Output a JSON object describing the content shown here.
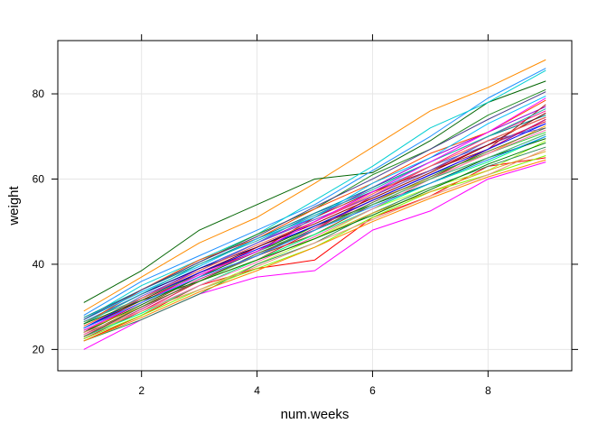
{
  "chart_data": {
    "type": "line",
    "title": "",
    "xlabel": "num.weeks",
    "ylabel": "weight",
    "xlim": [
      0.55,
      9.45
    ],
    "ylim": [
      15.0,
      92.5
    ],
    "x_ticks": [
      2,
      4,
      6,
      8
    ],
    "y_ticks": [
      20,
      40,
      60,
      80
    ],
    "grid": true,
    "legend": "none",
    "x": [
      1,
      2,
      3,
      4,
      5,
      6,
      7,
      8,
      9
    ],
    "series": [
      {
        "color": "#ff8c00",
        "values": [
          29,
          37,
          45,
          51,
          59,
          67.5,
          76,
          81.5,
          88
        ]
      },
      {
        "color": "#006400",
        "values": [
          31,
          38.5,
          48,
          54,
          60,
          61.5,
          69,
          78,
          83
        ]
      },
      {
        "color": "#1e90ff",
        "values": [
          28,
          36,
          42,
          48,
          54,
          62,
          70,
          79,
          86
        ]
      },
      {
        "color": "#00ced1",
        "values": [
          27,
          35,
          41,
          47,
          55,
          63,
          72,
          78,
          85.5
        ]
      },
      {
        "color": "#228b22",
        "values": [
          26,
          34,
          40.5,
          47,
          53,
          61,
          67,
          75,
          81
        ]
      },
      {
        "color": "#ff00ff",
        "values": [
          20,
          27,
          33,
          37,
          38.5,
          48,
          52.5,
          60,
          64
        ]
      },
      {
        "color": "#ff0000",
        "values": [
          22,
          28,
          35,
          39,
          41,
          51,
          56,
          63,
          65
        ]
      },
      {
        "color": "#adff2f",
        "values": [
          23,
          29,
          34,
          40,
          46,
          53,
          58,
          62,
          69
        ]
      },
      {
        "color": "#9400d3",
        "values": [
          24,
          32,
          39,
          45,
          51,
          58,
          65,
          71,
          77
        ]
      },
      {
        "color": "#ff1493",
        "values": [
          25,
          31,
          37,
          44,
          50,
          56,
          63,
          70,
          76
        ]
      },
      {
        "color": "#8b4513",
        "values": [
          23.5,
          30,
          37,
          42,
          47,
          54,
          60,
          67,
          74
        ]
      },
      {
        "color": "#4169e1",
        "values": [
          26.5,
          33,
          39,
          45,
          52,
          57,
          63,
          68,
          73
        ]
      },
      {
        "color": "#32cd32",
        "values": [
          24.5,
          30,
          36,
          42,
          49,
          55,
          61,
          66,
          71
        ]
      },
      {
        "color": "#dc143c",
        "values": [
          22.5,
          29,
          36,
          41,
          48,
          56,
          62,
          68,
          73.5
        ]
      },
      {
        "color": "#008b8b",
        "values": [
          27.5,
          34,
          40,
          46,
          52,
          58,
          64,
          70,
          75
        ]
      },
      {
        "color": "#ffa500",
        "values": [
          25.5,
          32,
          38,
          43,
          49,
          55,
          60,
          66,
          72.5
        ]
      },
      {
        "color": "#000080",
        "values": [
          26,
          33,
          39,
          44,
          50,
          57,
          62,
          69,
          74.5
        ]
      },
      {
        "color": "#00ff7f",
        "values": [
          23,
          28.5,
          35,
          41,
          47,
          53,
          59,
          64,
          70
        ]
      },
      {
        "color": "#b22222",
        "values": [
          24,
          31,
          38,
          43,
          51,
          57,
          62,
          67,
          77.5
        ]
      },
      {
        "color": "#6a5acd",
        "values": [
          25,
          32.5,
          38.5,
          45,
          50.5,
          56,
          62,
          69,
          72
        ]
      },
      {
        "color": "#2e8b57",
        "values": [
          22,
          27,
          33,
          40,
          45,
          52,
          58,
          63,
          67.5
        ]
      },
      {
        "color": "#ff4500",
        "values": [
          26,
          34,
          41,
          46,
          53,
          59,
          66,
          71,
          78.5
        ]
      },
      {
        "color": "#006400",
        "values": [
          24,
          30.5,
          37,
          43,
          49,
          54,
          59,
          65,
          69.5
        ]
      },
      {
        "color": "#00bfff",
        "values": [
          27,
          33.5,
          39.5,
          46,
          51,
          59,
          65,
          73,
          79.5
        ]
      },
      {
        "color": "#c71585",
        "values": [
          23,
          29.5,
          36.5,
          42,
          48.5,
          55,
          61,
          67,
          74
        ]
      },
      {
        "color": "#7cfc00",
        "values": [
          22.5,
          28,
          34,
          39,
          44,
          51,
          57,
          61,
          65.5
        ]
      },
      {
        "color": "#8b0000",
        "values": [
          25,
          31.5,
          38,
          44,
          49.5,
          55.5,
          61.5,
          68,
          75.5
        ]
      },
      {
        "color": "#20b2aa",
        "values": [
          26,
          33,
          40,
          45.5,
          51.5,
          57.5,
          64,
          70,
          76.5
        ]
      },
      {
        "color": "#daa520",
        "values": [
          24.5,
          30,
          36,
          41,
          46,
          52,
          57,
          62,
          66.5
        ]
      },
      {
        "color": "#ff69b4",
        "values": [
          23.5,
          29,
          35,
          40.5,
          46.5,
          53,
          60,
          66,
          71.5
        ]
      },
      {
        "color": "#0000ff",
        "values": [
          25,
          32,
          38,
          43.5,
          49,
          55,
          61,
          67,
          73
        ]
      },
      {
        "color": "#3cb371",
        "values": [
          26.5,
          32,
          37.5,
          43,
          48,
          54,
          60,
          65,
          70.5
        ]
      },
      {
        "color": "#e9967a",
        "values": [
          24,
          29,
          34,
          39.5,
          45,
          50.5,
          56,
          61,
          67
        ]
      },
      {
        "color": "#483d8b",
        "values": [
          27,
          34,
          40.5,
          46.5,
          53.5,
          60,
          67,
          74,
          80.5
        ]
      },
      {
        "color": "#ff6347",
        "values": [
          25.5,
          32,
          38.5,
          44.5,
          50,
          56.5,
          63,
          69,
          74.5
        ]
      },
      {
        "color": "#556b2f",
        "values": [
          23,
          30,
          36,
          42.5,
          48,
          54.5,
          60.5,
          66.5,
          72
        ]
      },
      {
        "color": "#ff00ff",
        "values": [
          24.5,
          31,
          37.5,
          43,
          50,
          57,
          64,
          71,
          79
        ]
      },
      {
        "color": "#008000",
        "values": [
          26,
          31.5,
          36,
          41,
          46,
          51.5,
          57.5,
          63.5,
          68.5
        ]
      },
      {
        "color": "#ff8c00",
        "values": [
          22,
          27.5,
          33.5,
          38.5,
          44,
          50,
          55.5,
          60.5,
          64.5
        ]
      },
      {
        "color": "#1e90ff",
        "values": [
          25,
          31,
          37,
          42,
          48,
          53.5,
          59,
          64.5,
          70
        ]
      }
    ]
  }
}
